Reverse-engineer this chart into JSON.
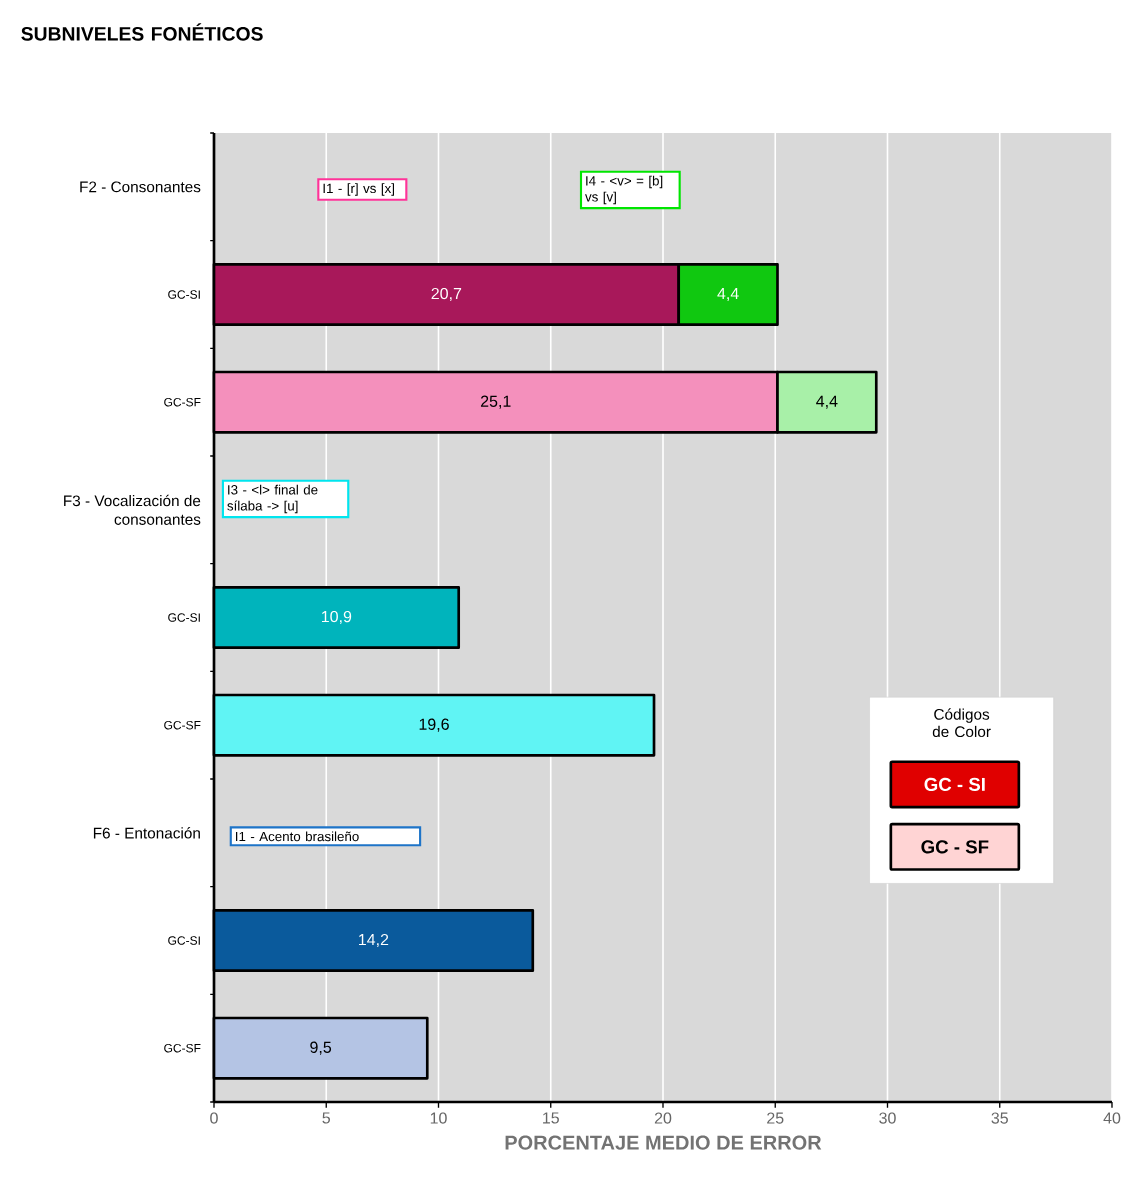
{
  "chart_data": {
    "type": "bar",
    "orientation": "horizontal",
    "stacked": true,
    "title": "SUBNIVELES FONÉTICOS",
    "xlabel": "PORCENTAJE MEDIO DE ERROR",
    "categories": [
      "F2 - Consonantes",
      "GC-SI",
      "GC-SF",
      "F3 - Vocalización de consonantes",
      "GC-SI",
      "GC-SF",
      "F6 - Entonación",
      "GC-SI",
      "GC-SF"
    ],
    "series": [
      {
        "colors": [
          null,
          "#a8185a",
          "#f490bc",
          null,
          "#00b4bc",
          "#60f4f4",
          null,
          "#0a5a9c",
          "#b4c4e4"
        ],
        "values": [
          null,
          20.7,
          25.1,
          null,
          10.9,
          19.6,
          null,
          14.2,
          9.5
        ],
        "value_labels": [
          null,
          "20,7",
          "25,1",
          null,
          "10,9",
          "19,6",
          null,
          "14,2",
          "9,5"
        ]
      },
      {
        "colors": [
          null,
          "#10c810",
          "#a8f0a8",
          null,
          null,
          null,
          null,
          null,
          null
        ],
        "values": [
          null,
          4.4,
          4.4,
          null,
          null,
          null,
          null,
          null,
          null
        ],
        "value_labels": [
          null,
          "4,4",
          "4,4",
          null,
          null,
          null,
          null,
          null,
          null
        ]
      }
    ],
    "xlim": [
      0,
      40
    ],
    "xticks": [
      0,
      5,
      10,
      15,
      20,
      25,
      30,
      35,
      40
    ],
    "grid": "x",
    "annotations": [
      "I1 - [r] vs [x]",
      "I4 - <v> = [b] vs [v]",
      "I3 - <l> final de sílaba -> [u]",
      "I1 - Acento brasileño",
      "Códigos de Color",
      "GC - SI",
      "GC - SF"
    ]
  }
}
